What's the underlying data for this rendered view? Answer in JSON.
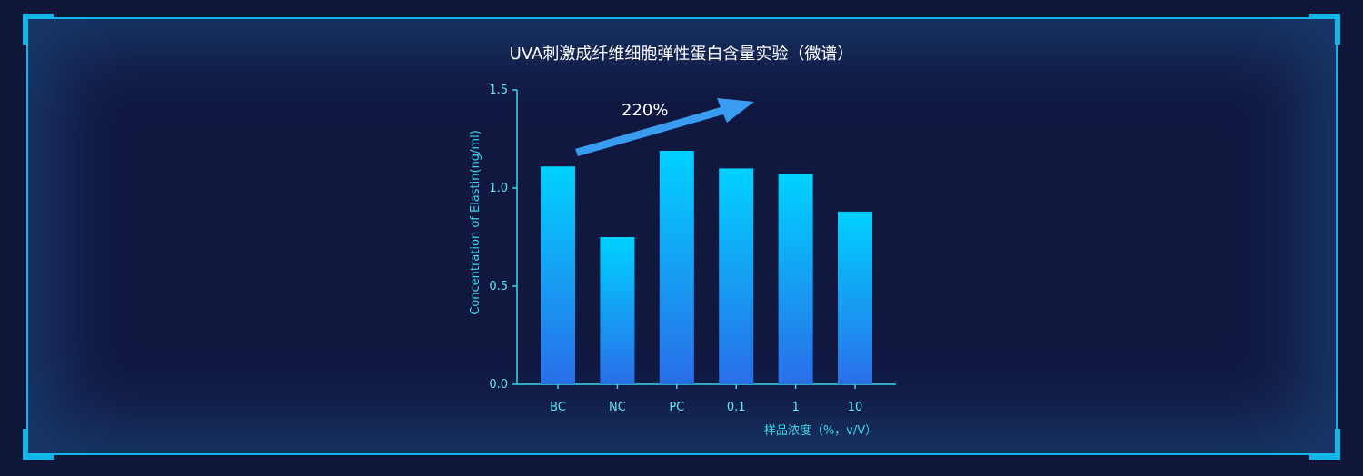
{
  "chart_data": {
    "type": "bar",
    "title": "UVA刺激成纤维细胞弹性蛋白含量实验（微谱）",
    "categories": [
      "BC",
      "NC",
      "PC",
      "0.1",
      "1",
      "10"
    ],
    "values": [
      1.11,
      0.75,
      1.19,
      1.1,
      1.07,
      0.88
    ],
    "xlabel": "样品浓度（%，v/V）",
    "ylabel": "Concentration of Elastin(ng/ml)",
    "ylim": [
      0,
      1.5
    ],
    "yticks": [
      "0.0",
      "0.5",
      "1.0",
      "1.5"
    ],
    "annotation": "220%",
    "grid": false,
    "bar_gradient": [
      "#00d2ff",
      "#2a6ee8"
    ]
  }
}
